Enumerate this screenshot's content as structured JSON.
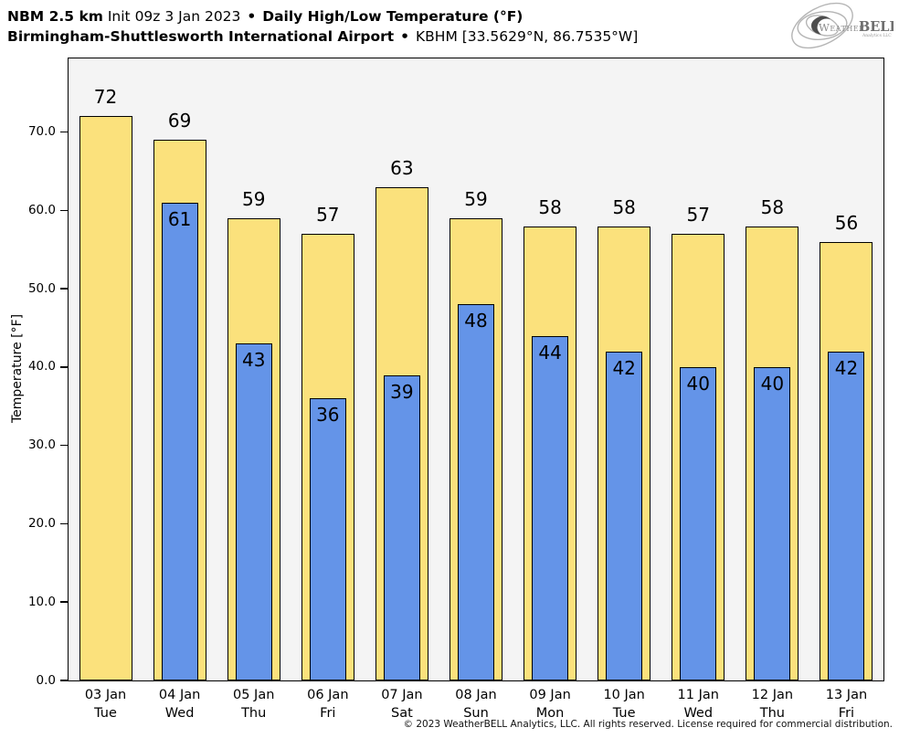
{
  "header": {
    "model": "NBM 2.5 km",
    "init": "Init 09z 3 Jan 2023",
    "separator": "•",
    "product": "Daily High/Low Temperature (°F)",
    "station": "Birmingham-Shuttlesworth International Airport",
    "station_id": "KBHM [33.5629°N, 86.7535°W]"
  },
  "logo": {
    "part1": "Weather",
    "part2": "BELL",
    "subtext": "Analytics LLC"
  },
  "chart_data": {
    "type": "bar",
    "title": "NBM 2.5 km Daily High/Low Temperature (°F) — Birmingham-Shuttlesworth International Airport (KBHM)",
    "ylabel": "Temperature [°F]",
    "ylim": [
      0,
      79.4
    ],
    "yticks": [
      0,
      10,
      20,
      30,
      40,
      50,
      60,
      70
    ],
    "ytick_labels": [
      "0.0",
      "10.0",
      "20.0",
      "30.0",
      "40.0",
      "50.0",
      "60.0",
      "70.0"
    ],
    "grid": false,
    "legend_position": "none",
    "plot_background": "#f4f4f4",
    "bar_edge_color": "#000000",
    "categories": [
      "03 Jan",
      "04 Jan",
      "05 Jan",
      "06 Jan",
      "07 Jan",
      "08 Jan",
      "09 Jan",
      "10 Jan",
      "11 Jan",
      "12 Jan",
      "13 Jan"
    ],
    "weekdays": [
      "Tue",
      "Wed",
      "Thu",
      "Fri",
      "Sat",
      "Sun",
      "Mon",
      "Tue",
      "Wed",
      "Thu",
      "Fri"
    ],
    "series": [
      {
        "name": "High",
        "color": "#fbe17c",
        "values": [
          72,
          69,
          59,
          57,
          63,
          59,
          58,
          58,
          57,
          58,
          56
        ]
      },
      {
        "name": "Low",
        "color": "#6494e8",
        "values": [
          null,
          61,
          43,
          36,
          39,
          48,
          44,
          42,
          40,
          40,
          42
        ]
      }
    ]
  },
  "footer": {
    "copyright": "© 2023 WeatherBELL Analytics, LLC. All rights reserved. License required for commercial distribution."
  }
}
